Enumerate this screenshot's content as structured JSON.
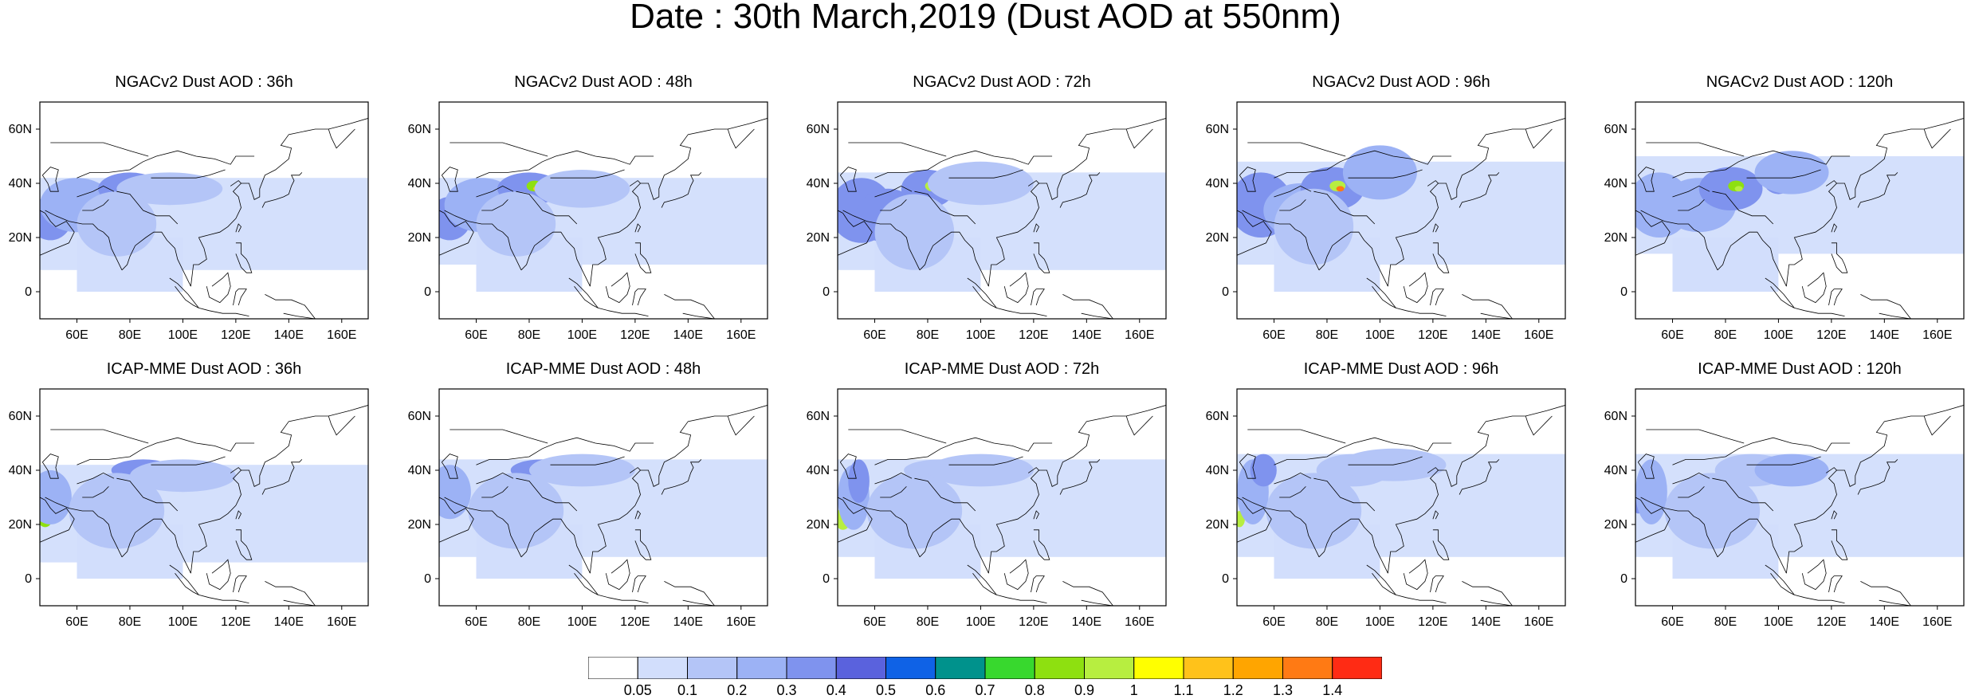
{
  "title": "Date : 30th March,2019 (Dust AOD at 550nm)",
  "panels": [
    {
      "title": "NGACv2 Dust AOD : 36h"
    },
    {
      "title": "NGACv2 Dust AOD : 48h"
    },
    {
      "title": "NGACv2 Dust AOD : 72h"
    },
    {
      "title": "NGACv2 Dust AOD : 96h"
    },
    {
      "title": "NGACv2 Dust AOD : 120h"
    },
    {
      "title": "ICAP-MME Dust AOD : 36h"
    },
    {
      "title": "ICAP-MME Dust AOD : 48h"
    },
    {
      "title": "ICAP-MME Dust AOD : 72h"
    },
    {
      "title": "ICAP-MME Dust AOD : 96h"
    },
    {
      "title": "ICAP-MME Dust AOD : 120h"
    }
  ],
  "map_extent": {
    "lon": [
      46,
      170
    ],
    "lat": [
      -10,
      70
    ]
  },
  "lon_ticks": [
    "60E",
    "80E",
    "100E",
    "120E",
    "140E",
    "160E"
  ],
  "lon_tick_values": [
    60,
    80,
    100,
    120,
    140,
    160
  ],
  "lat_ticks": [
    "60N",
    "40N",
    "20N",
    "0"
  ],
  "lat_tick_values": [
    60,
    40,
    20,
    0
  ],
  "colorbar": {
    "labels": [
      "0.05",
      "0.1",
      "0.2",
      "0.3",
      "0.4",
      "0.5",
      "0.6",
      "0.7",
      "0.8",
      "0.9",
      "1",
      "1.1",
      "1.2",
      "1.3",
      "1.4"
    ],
    "colors": [
      "#ffffff",
      "#d2defc",
      "#b4c5f7",
      "#9cb2f5",
      "#7f93ee",
      "#5a62dd",
      "#0f62e6",
      "#00928c",
      "#38d82e",
      "#8ee010",
      "#b7ee40",
      "#ffff00",
      "#ffc21a",
      "#ffa500",
      "#ff7a14",
      "#ff2b14"
    ]
  }
}
